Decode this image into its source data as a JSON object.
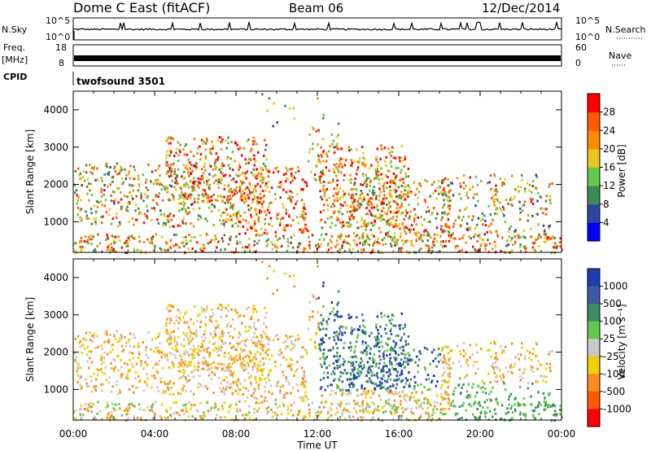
{
  "header": {
    "station": "Dome C East (fitACF)",
    "beam": "Beam 06",
    "date": "12/Dec/2014"
  },
  "top_panels": {
    "nsky_label": "N.Sky",
    "nsky_ticks": [
      "10^5",
      "10^0"
    ],
    "nsearch_label": "N.Search",
    "nsearch_ticks": [
      "10^5",
      "10^0"
    ],
    "freq_label": "Freq.",
    "freq_unit": "[MHz]",
    "freq_ticks": [
      "18",
      "8"
    ],
    "nave_label": "Nave",
    "nave_ticks": [
      "60",
      "0"
    ],
    "cpid_label": "CPID",
    "cpid_value": "twofsound 3501"
  },
  "chart_data": [
    {
      "type": "heatmap",
      "name": "power",
      "ylabel": "Slant Range [km]",
      "ylim": [
        180,
        4500
      ],
      "yticks": [
        "1000",
        "2000",
        "3000",
        "4000"
      ],
      "xlim": [
        0,
        24
      ],
      "colorbar_label": "Power [dB]",
      "colorbar_ticks": [
        "4",
        "8",
        "12",
        "16",
        "20",
        "24",
        "28"
      ],
      "colorbar_colors": [
        "#0000ff",
        "#2d46a0",
        "#3e8a55",
        "#64c84b",
        "#e6c81e",
        "#ff8c00",
        "#ff5a00",
        "#ff0000"
      ],
      "colorbar_range": [
        0,
        32
      ],
      "grid": false
    },
    {
      "type": "heatmap",
      "name": "velocity",
      "ylabel": "Slant Range [km]",
      "ylim": [
        180,
        4500
      ],
      "yticks": [
        "1000",
        "2000",
        "3000",
        "4000"
      ],
      "xlim": [
        0,
        24
      ],
      "xticks": [
        "00:00",
        "04:00",
        "08:00",
        "12:00",
        "16:00",
        "20:00",
        "00:00"
      ],
      "xlabel": "Time UT",
      "colorbar_label": "Velocity [m s⁻¹]",
      "colorbar_ticks": [
        "1000",
        "500",
        "100",
        "25",
        "-25",
        "-100",
        "-500",
        "-1000"
      ],
      "colorbar_colors": [
        "#1e3cb4",
        "#3c5aa0",
        "#3c8c64",
        "#64c84b",
        "#c8c8c8",
        "#f0d200",
        "#ff8c1e",
        "#ff5a00",
        "#ff0000"
      ],
      "grid": false
    }
  ]
}
